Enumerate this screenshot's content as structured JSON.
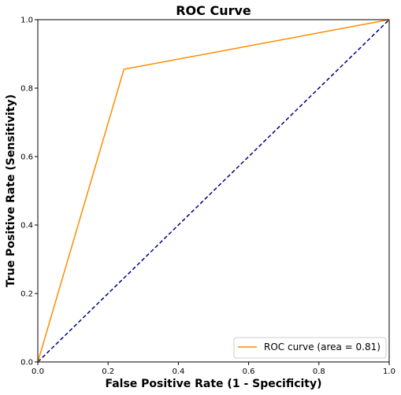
{
  "chart_data": {
    "type": "line",
    "title": "ROC Curve",
    "xlabel": "False Positive Rate (1 - Specificity)",
    "ylabel": "True Positive Rate (Sensitivity)",
    "xlim": [
      0.0,
      1.0
    ],
    "ylim": [
      0.0,
      1.0
    ],
    "xticks": [
      "0.0",
      "0.2",
      "0.4",
      "0.6",
      "0.8",
      "1.0"
    ],
    "yticks": [
      "0.0",
      "0.2",
      "0.4",
      "0.6",
      "0.8",
      "1.0"
    ],
    "grid": false,
    "legend_position": "lower-right",
    "series": [
      {
        "name": "ROC curve (area = 0.81)",
        "color": "#ff8c00",
        "style": "solid",
        "x": [
          0.0,
          0.245,
          1.0
        ],
        "y": [
          0.0,
          0.855,
          1.0
        ]
      },
      {
        "color": "#000080",
        "style": "dashed",
        "x": [
          0.0,
          1.0
        ],
        "y": [
          0.0,
          1.0
        ]
      }
    ]
  }
}
